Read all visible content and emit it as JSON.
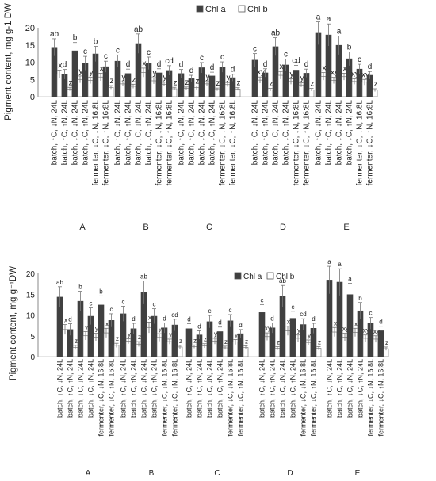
{
  "chart_data": [
    {
      "type": "bar",
      "panel_labels": [
        "A",
        "B",
        "C",
        "D",
        "E"
      ],
      "categories": [
        "batch, ↑C, ↓N, 24L",
        "batch, ↑C, ↑N, 24L",
        "batch, ↓C, ↓N, 24L",
        "batch, ↓C, ↑N, 24L",
        "fermenter, ↓C, ↓N, 16:8L",
        "fermenter, ↓C, ↑N, 16:8L"
      ],
      "series": [
        {
          "name": "Chl a",
          "color": "#404040"
        },
        {
          "name": "Chl b",
          "color": "#ffffff"
        }
      ],
      "ylabel": "Pigment content, mg g-1 DW",
      "ylim": [
        0,
        20
      ],
      "yticks": [
        0,
        5,
        10,
        15,
        20
      ],
      "legend_position": "top",
      "panels": [
        {
          "label": "A",
          "chla": [
            14.3,
            6.5,
            13.3,
            9.7,
            12.4,
            8.7
          ],
          "chla_err": [
            2.5,
            1.4,
            2.4,
            2.0,
            2.2,
            1.6
          ],
          "chla_sig": [
            "ab",
            "d",
            "b",
            "c",
            "b",
            "c"
          ],
          "chlb": [
            6.5,
            2.2,
            5.0,
            4.7,
            5.7,
            2.7
          ],
          "chlb_err": [
            1.2,
            0.5,
            1.0,
            0.9,
            1.1,
            0.5
          ],
          "chlb_sig": [
            "x",
            "z",
            "y",
            "y",
            "x",
            "z"
          ]
        },
        {
          "label": "B",
          "chla": [
            10.3,
            6.7,
            15.4,
            9.7,
            6.9,
            7.6
          ],
          "chla_err": [
            1.8,
            1.3,
            2.8,
            1.8,
            1.2,
            1.4
          ],
          "chla_sig": [
            "c",
            "d",
            "ab",
            "c",
            "d",
            "cd"
          ],
          "chlb": [
            3.7,
            3.0,
            7.0,
            4.6,
            3.6,
            2.3
          ],
          "chlb_err": [
            0.6,
            0.6,
            1.3,
            0.9,
            0.6,
            0.4
          ],
          "chlb_sig": [
            "y",
            "z",
            "x",
            "y",
            "y",
            "z"
          ]
        },
        {
          "label": "C",
          "chla": [
            6.7,
            5.2,
            8.4,
            6.0,
            8.6,
            5.5
          ],
          "chla_err": [
            1.2,
            1.0,
            1.5,
            1.1,
            1.5,
            1.0
          ],
          "chla_sig": [
            "d",
            "d",
            "c",
            "d",
            "c",
            "d"
          ],
          "chlb": [
            2.4,
            2.6,
            3.7,
            2.1,
            3.5,
            2.2
          ],
          "chlb_err": [
            0.4,
            0.5,
            0.7,
            0.4,
            0.6,
            0.4
          ],
          "chlb_sig": [
            "z",
            "z",
            "y",
            "z",
            "y",
            "z"
          ]
        },
        {
          "label": "D",
          "chla": [
            10.6,
            6.9,
            14.5,
            9.2,
            7.7,
            6.8
          ],
          "chla_err": [
            1.9,
            1.2,
            2.6,
            1.7,
            1.4,
            1.2
          ],
          "chla_sig": [
            "c",
            "d",
            "ab",
            "c",
            "cd",
            "d"
          ],
          "chlb": [
            4.8,
            2.0,
            6.2,
            4.4,
            3.4,
            2.0
          ],
          "chlb_err": [
            0.9,
            0.4,
            1.1,
            0.8,
            0.6,
            0.4
          ],
          "chlb_sig": [
            "xy",
            "z",
            "x",
            "y",
            "y",
            "z"
          ]
        },
        {
          "label": "E",
          "chla": [
            18.4,
            17.9,
            14.9,
            11.0,
            8.0,
            6.2
          ],
          "chla_err": [
            3.3,
            3.2,
            2.7,
            2.0,
            1.4,
            1.1
          ],
          "chla_sig": [
            "a",
            "a",
            "a",
            "b",
            "c",
            "d"
          ],
          "chlb": [
            5.9,
            4.7,
            5.8,
            4.4,
            4.2,
            1.9
          ],
          "chlb_err": [
            1.1,
            0.9,
            1.0,
            0.8,
            0.8,
            0.4
          ],
          "chlb_sig": [
            "x",
            "xy",
            "x",
            "xy",
            "xy",
            "z"
          ]
        }
      ]
    },
    {
      "type": "bar",
      "panel_labels": [
        "A",
        "B",
        "C",
        "D",
        "E"
      ],
      "categories": [
        "batch, ↑C, ↓N, 24L",
        "batch, ↑C, ↑N, 24L",
        "batch, ↓C, ↓N, 24L",
        "batch, ↓C, ↑N, 24L",
        "fermenter, ↓C, ↓N, 16:8L",
        "fermenter, ↓C, ↑N, 16:8L"
      ],
      "series": [
        {
          "name": "Chl a",
          "color": "#404040"
        },
        {
          "name": "Chl b",
          "color": "#ffffff"
        }
      ],
      "ylabel": "Pigment content, mg g⁻¹DW",
      "ylim": [
        0,
        20
      ],
      "yticks": [
        0,
        5,
        10,
        15,
        20
      ],
      "legend_position": "top",
      "panels": [
        {
          "label": "A",
          "chla": [
            14.3,
            6.5,
            13.3,
            9.7,
            12.4,
            8.7
          ],
          "chla_err": [
            2.5,
            1.4,
            2.4,
            2.0,
            2.2,
            1.6
          ],
          "chla_sig": [
            "ab",
            "d",
            "b",
            "c",
            "b",
            "c"
          ],
          "chlb": [
            6.5,
            2.2,
            5.0,
            4.7,
            5.7,
            2.7
          ],
          "chlb_err": [
            1.2,
            0.5,
            1.0,
            0.9,
            1.1,
            0.5
          ],
          "chlb_sig": [
            "x",
            "z",
            "y",
            "y",
            "x",
            "z"
          ]
        },
        {
          "label": "B",
          "chla": [
            10.3,
            6.7,
            15.4,
            9.7,
            6.9,
            7.6
          ],
          "chla_err": [
            1.8,
            1.3,
            2.8,
            1.8,
            1.2,
            1.4
          ],
          "chla_sig": [
            "c",
            "d",
            "ab",
            "c",
            "d",
            "cd"
          ],
          "chlb": [
            3.7,
            3.0,
            7.0,
            4.6,
            3.6,
            2.3
          ],
          "chlb_err": [
            0.6,
            0.6,
            1.3,
            0.9,
            0.6,
            0.4
          ],
          "chlb_sig": [
            "y",
            "z",
            "x",
            "y",
            "y",
            "z"
          ]
        },
        {
          "label": "C",
          "chla": [
            6.7,
            5.2,
            8.4,
            6.0,
            8.6,
            5.5
          ],
          "chla_err": [
            1.2,
            1.0,
            1.5,
            1.1,
            1.5,
            1.0
          ],
          "chla_sig": [
            "d",
            "d",
            "c",
            "d",
            "c",
            "d"
          ],
          "chlb": [
            2.4,
            2.6,
            3.7,
            2.1,
            3.5,
            2.2
          ],
          "chlb_err": [
            0.4,
            0.5,
            0.7,
            0.4,
            0.6,
            0.4
          ],
          "chlb_sig": [
            "z",
            "z",
            "y",
            "z",
            "y",
            "z"
          ]
        },
        {
          "label": "D",
          "chla": [
            10.6,
            6.9,
            14.5,
            9.2,
            7.7,
            6.8
          ],
          "chla_err": [
            1.9,
            1.2,
            2.6,
            1.7,
            1.4,
            1.2
          ],
          "chla_sig": [
            "c",
            "d",
            "ab",
            "c",
            "cd",
            "d"
          ],
          "chlb": [
            4.8,
            2.0,
            6.2,
            4.4,
            3.4,
            2.0
          ],
          "chlb_err": [
            0.9,
            0.4,
            1.1,
            0.8,
            0.6,
            0.4
          ],
          "chlb_sig": [
            "xy",
            "z",
            "x",
            "y",
            "y",
            "z"
          ]
        },
        {
          "label": "E",
          "chla": [
            18.4,
            17.9,
            14.9,
            11.0,
            8.0,
            6.2
          ],
          "chla_err": [
            3.3,
            3.2,
            2.7,
            2.0,
            1.4,
            1.1
          ],
          "chla_sig": [
            "a",
            "a",
            "a",
            "b",
            "c",
            "d"
          ],
          "chlb": [
            5.9,
            4.7,
            5.8,
            4.4,
            4.2,
            1.9
          ],
          "chlb_err": [
            1.1,
            0.9,
            1.0,
            0.8,
            0.8,
            0.4
          ],
          "chlb_sig": [
            "x",
            "xy",
            "x",
            "xy",
            "xy",
            "z"
          ]
        }
      ]
    }
  ]
}
